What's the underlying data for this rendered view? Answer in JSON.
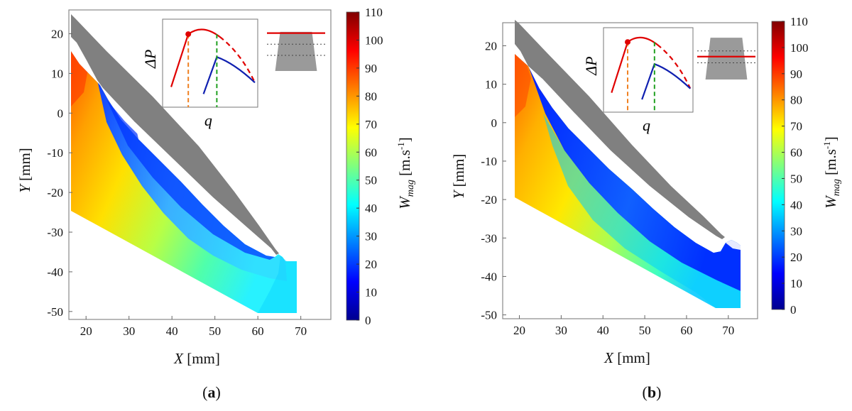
{
  "chart_data": [
    {
      "type": "heatmap",
      "panel_label": "a",
      "xlabel_var": "X",
      "xlabel_unit": "[mm]",
      "ylabel_var": "Y",
      "ylabel_unit": "[mm]",
      "xlim": [
        16,
        77
      ],
      "ylim": [
        -52,
        26
      ],
      "x_ticks": [
        20,
        30,
        40,
        50,
        60,
        70
      ],
      "y_ticks": [
        20,
        10,
        0,
        -10,
        -20,
        -30,
        -40,
        -50
      ],
      "colorbar": {
        "label_main": "W",
        "label_sub": "mag",
        "label_unit": "[m.s",
        "label_exp": "-1",
        "label_close": "]",
        "range": [
          0,
          110
        ],
        "ticks": [
          110,
          100,
          90,
          80,
          70,
          60,
          50,
          40,
          30,
          20,
          10,
          0
        ],
        "colormap": "jet"
      },
      "inset": {
        "ylabel": "ΔP",
        "xlabel": "q",
        "operating_point": "peak",
        "plane_position": "top"
      },
      "blade_color": "#808080"
    },
    {
      "type": "heatmap",
      "panel_label": "b",
      "xlabel_var": "X",
      "xlabel_unit": "[mm]",
      "ylabel_var": "Y",
      "ylabel_unit": "[mm]",
      "xlim": [
        16,
        77
      ],
      "ylim": [
        -51,
        26
      ],
      "x_ticks": [
        20,
        30,
        40,
        50,
        60,
        70
      ],
      "y_ticks": [
        20,
        10,
        0,
        -10,
        -20,
        -30,
        -40,
        -50
      ],
      "colorbar": {
        "label_main": "W",
        "label_sub": "mag",
        "label_unit": "[m.s",
        "label_exp": "-1",
        "label_close": "]",
        "range": [
          0,
          110
        ],
        "ticks": [
          110,
          100,
          90,
          80,
          70,
          60,
          50,
          40,
          30,
          20,
          10,
          0
        ],
        "colormap": "jet"
      },
      "inset": {
        "ylabel": "ΔP",
        "xlabel": "q",
        "operating_point": "peak",
        "plane_position": "middle"
      },
      "blade_color": "#808080"
    }
  ]
}
